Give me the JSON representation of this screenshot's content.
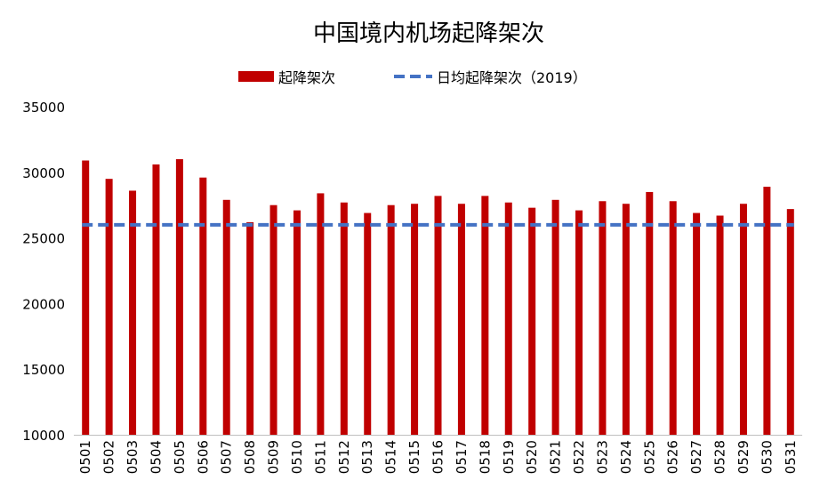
{
  "chart_data": {
    "type": "bar",
    "title": "中国境内机场起降架次",
    "xlabel": "",
    "ylabel": "",
    "ylim": [
      10000,
      35000
    ],
    "yticks": [
      "10000",
      "15000",
      "20000",
      "25000",
      "30000",
      "35000"
    ],
    "grid": false,
    "legend_position": "top",
    "categories": [
      "0501",
      "0502",
      "0503",
      "0504",
      "0505",
      "0506",
      "0507",
      "0508",
      "0509",
      "0510",
      "0511",
      "0512",
      "0513",
      "0514",
      "0515",
      "0516",
      "0517",
      "0518",
      "0519",
      "0520",
      "0521",
      "0522",
      "0523",
      "0524",
      "0525",
      "0526",
      "0527",
      "0528",
      "0529",
      "0530",
      "0531"
    ],
    "series": [
      {
        "name": "起降架次",
        "type": "bar",
        "color": "#c00000",
        "values": [
          30900,
          29500,
          28600,
          30600,
          31000,
          29600,
          27900,
          26200,
          27500,
          27100,
          28400,
          27700,
          26900,
          27500,
          27600,
          28200,
          27600,
          28200,
          27700,
          27300,
          27900,
          27100,
          27800,
          27600,
          28500,
          27800,
          26900,
          26700,
          27600,
          28900,
          27200
        ]
      },
      {
        "name": "日均起降架次（2019）",
        "type": "line",
        "style": "dashed",
        "color": "#4472c4",
        "value": 26000
      }
    ]
  }
}
